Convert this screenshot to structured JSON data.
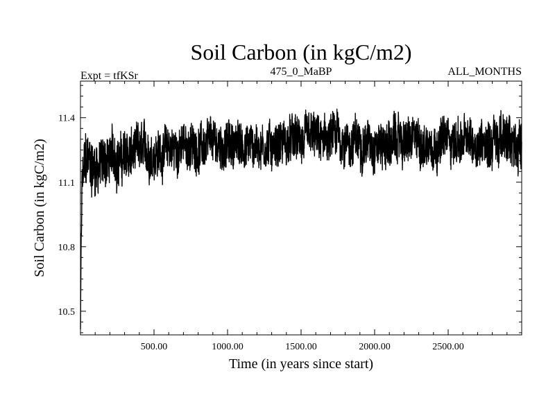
{
  "chart_data": {
    "type": "line",
    "title": "Soil Carbon (in kgC/m2)",
    "subtitle_left": "Expt = tfKSr",
    "subtitle_center": "475_0_MaBP",
    "subtitle_right": "ALL_MONTHS",
    "xlabel": "Time (in years since start)",
    "ylabel": "Soil Carbon (in kgC/m2)",
    "xlim": [
      0,
      3000
    ],
    "ylim": [
      10.39,
      11.57
    ],
    "xticks": [
      500,
      1000,
      1500,
      2000,
      2500
    ],
    "xtick_labels": [
      "500.00",
      "1000.00",
      "1500.00",
      "2000.00",
      "2500.00"
    ],
    "yticks": [
      10.5,
      10.8,
      11.1,
      11.4
    ],
    "ytick_labels": [
      "10.5",
      "10.8",
      "11.1",
      "11.4"
    ],
    "series": [
      {
        "name": "Soil Carbon",
        "color": "#000000",
        "x": [
          0,
          5,
          10,
          20,
          40,
          70,
          100,
          150,
          200,
          250,
          300,
          350,
          400,
          450,
          500,
          550,
          600,
          650,
          700,
          750,
          800,
          850,
          900,
          950,
          1000,
          1050,
          1100,
          1150,
          1200,
          1250,
          1300,
          1350,
          1400,
          1450,
          1500,
          1550,
          1600,
          1650,
          1700,
          1750,
          1800,
          1850,
          1900,
          1950,
          2000,
          2050,
          2100,
          2150,
          2200,
          2250,
          2300,
          2350,
          2400,
          2450,
          2500,
          2550,
          2600,
          2650,
          2700,
          2750,
          2800,
          2850,
          2900,
          2950,
          3000
        ],
        "center": [
          10.42,
          10.8,
          11.05,
          11.15,
          11.19,
          11.18,
          11.17,
          11.19,
          11.21,
          11.22,
          11.21,
          11.23,
          11.24,
          11.23,
          11.25,
          11.24,
          11.26,
          11.25,
          11.27,
          11.26,
          11.27,
          11.26,
          11.27,
          11.27,
          11.27,
          11.28,
          11.27,
          11.28,
          11.27,
          11.28,
          11.27,
          11.29,
          11.28,
          11.29,
          11.28,
          11.29,
          11.29,
          11.28,
          11.29,
          11.3,
          11.29,
          11.28,
          11.29,
          11.29,
          11.29,
          11.28,
          11.28,
          11.29,
          11.29,
          11.28,
          11.29,
          11.28,
          11.29,
          11.29,
          11.3,
          11.29,
          11.29,
          11.28,
          11.29,
          11.3,
          11.3,
          11.29,
          11.29,
          11.28,
          11.29
        ],
        "amplitude": [
          0.02,
          0.15,
          0.18,
          0.2,
          0.22,
          0.22,
          0.22,
          0.2,
          0.2,
          0.2,
          0.2,
          0.19,
          0.18,
          0.19,
          0.18,
          0.18,
          0.17,
          0.18,
          0.17,
          0.17,
          0.18,
          0.17,
          0.18,
          0.17,
          0.18,
          0.17,
          0.18,
          0.18,
          0.17,
          0.18,
          0.17,
          0.18,
          0.17,
          0.18,
          0.17,
          0.18,
          0.18,
          0.17,
          0.19,
          0.19,
          0.17,
          0.18,
          0.18,
          0.17,
          0.18,
          0.18,
          0.19,
          0.18,
          0.18,
          0.18,
          0.18,
          0.18,
          0.17,
          0.18,
          0.18,
          0.17,
          0.18,
          0.17,
          0.18,
          0.18,
          0.22,
          0.2,
          0.19,
          0.19,
          0.18
        ]
      }
    ]
  }
}
